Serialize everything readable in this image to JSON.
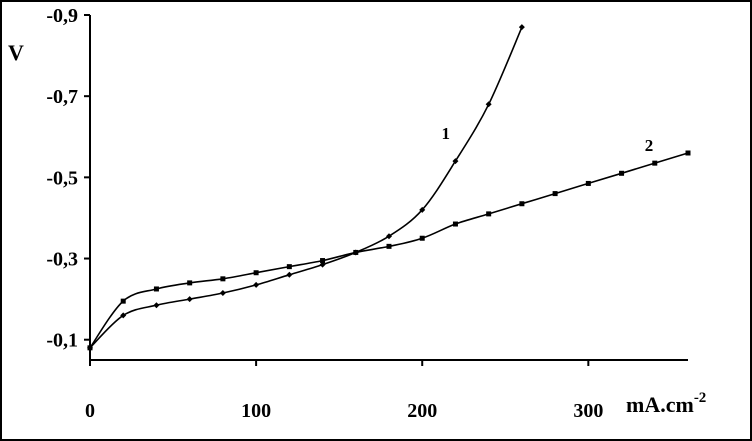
{
  "chart_data": {
    "type": "line",
    "xlabel": "mA.cm",
    "xlabel_sup": "-2",
    "ylabel": "V",
    "xlim": [
      0,
      360
    ],
    "ylim": [
      -0.05,
      -0.9
    ],
    "x_ticks": [
      0,
      100,
      200,
      300
    ],
    "x_tick_labels": [
      "0",
      "100",
      "200",
      "300"
    ],
    "y_ticks": [
      -0.1,
      -0.3,
      -0.5,
      -0.7,
      -0.9
    ],
    "y_tick_labels": [
      "-0,1",
      "-0,3",
      "-0,5",
      "-0,7",
      "-0,9"
    ],
    "grid": false,
    "legend": "none",
    "series": [
      {
        "label": "1",
        "marker": "diamond",
        "color": "#000000",
        "x": [
          0,
          20,
          40,
          60,
          80,
          100,
          120,
          140,
          160,
          180,
          200,
          220,
          240,
          260
        ],
        "y": [
          -0.08,
          -0.16,
          -0.185,
          -0.2,
          -0.215,
          -0.235,
          -0.26,
          -0.285,
          -0.315,
          -0.355,
          -0.42,
          -0.54,
          -0.68,
          -0.87
        ]
      },
      {
        "label": "2",
        "marker": "square",
        "color": "#000000",
        "x": [
          0,
          20,
          40,
          60,
          80,
          100,
          120,
          140,
          160,
          180,
          200,
          220,
          240,
          260,
          280,
          300,
          320,
          340,
          360
        ],
        "y": [
          -0.08,
          -0.195,
          -0.225,
          -0.24,
          -0.25,
          -0.265,
          -0.28,
          -0.295,
          -0.315,
          -0.33,
          -0.35,
          -0.385,
          -0.41,
          -0.435,
          -0.46,
          -0.485,
          -0.51,
          -0.535,
          -0.56
        ]
      }
    ]
  }
}
